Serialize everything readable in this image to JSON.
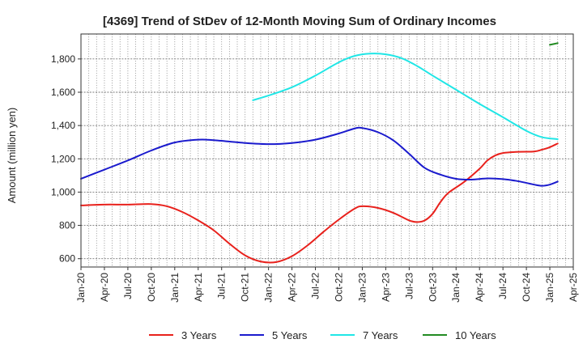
{
  "chart_data": {
    "type": "line",
    "title": "[4369]  Trend of StDev of 12-Month Moving Sum of Ordinary Incomes",
    "xlabel": "",
    "ylabel": "Amount (million yen)",
    "ylim": [
      550,
      1950
    ],
    "y_ticks": [
      600,
      800,
      1000,
      1200,
      1400,
      1600,
      1800
    ],
    "y_tick_labels": [
      "600",
      "800",
      "1,000",
      "1,200",
      "1,400",
      "1,600",
      "1,800"
    ],
    "x_range": [
      "2020-01",
      "2025-04"
    ],
    "x_ticks": [
      "2020-01",
      "2020-04",
      "2020-07",
      "2020-10",
      "2021-01",
      "2021-04",
      "2021-07",
      "2021-10",
      "2022-01",
      "2022-04",
      "2022-07",
      "2022-10",
      "2023-01",
      "2023-04",
      "2023-07",
      "2023-10",
      "2024-01",
      "2024-04",
      "2024-07",
      "2024-10",
      "2025-01",
      "2025-04"
    ],
    "x_tick_labels": [
      "Jan-20",
      "Apr-20",
      "Jul-20",
      "Oct-20",
      "Jan-21",
      "Apr-21",
      "Jul-21",
      "Oct-21",
      "Jan-22",
      "Apr-22",
      "Jul-22",
      "Oct-22",
      "Jan-23",
      "Apr-23",
      "Jul-23",
      "Oct-23",
      "Jan-24",
      "Apr-24",
      "Jul-24",
      "Oct-24",
      "Jan-25",
      "Apr-25"
    ],
    "grid": true,
    "legend_position": "bottom",
    "series": [
      {
        "name": "3 Years",
        "color": "#e8211c",
        "points": [
          [
            "2020-01",
            920
          ],
          [
            "2020-04",
            925
          ],
          [
            "2020-07",
            925
          ],
          [
            "2020-10",
            928
          ],
          [
            "2020-12",
            915
          ],
          [
            "2021-02",
            880
          ],
          [
            "2021-04",
            830
          ],
          [
            "2021-06",
            770
          ],
          [
            "2021-08",
            690
          ],
          [
            "2021-10",
            620
          ],
          [
            "2021-12",
            583
          ],
          [
            "2022-02",
            580
          ],
          [
            "2022-04",
            615
          ],
          [
            "2022-06",
            680
          ],
          [
            "2022-08",
            760
          ],
          [
            "2022-10",
            835
          ],
          [
            "2022-12",
            900
          ],
          [
            "2023-01",
            915
          ],
          [
            "2023-03",
            905
          ],
          [
            "2023-05",
            875
          ],
          [
            "2023-07",
            830
          ],
          [
            "2023-08",
            820
          ],
          [
            "2023-09",
            830
          ],
          [
            "2023-10",
            870
          ],
          [
            "2023-11",
            940
          ],
          [
            "2023-12",
            995
          ],
          [
            "2024-02",
            1060
          ],
          [
            "2024-04",
            1140
          ],
          [
            "2024-05",
            1190
          ],
          [
            "2024-06",
            1220
          ],
          [
            "2024-07",
            1235
          ],
          [
            "2024-09",
            1242
          ],
          [
            "2024-11",
            1244
          ],
          [
            "2024-12",
            1255
          ],
          [
            "2025-01",
            1270
          ],
          [
            "2025-02",
            1292
          ]
        ]
      },
      {
        "name": "5 Years",
        "color": "#1a1acd",
        "points": [
          [
            "2020-01",
            1080
          ],
          [
            "2020-04",
            1135
          ],
          [
            "2020-07",
            1190
          ],
          [
            "2020-10",
            1250
          ],
          [
            "2021-01",
            1298
          ],
          [
            "2021-04",
            1315
          ],
          [
            "2021-06",
            1312
          ],
          [
            "2021-10",
            1295
          ],
          [
            "2022-01",
            1288
          ],
          [
            "2022-04",
            1295
          ],
          [
            "2022-07",
            1315
          ],
          [
            "2022-10",
            1352
          ],
          [
            "2022-12",
            1382
          ],
          [
            "2023-01",
            1385
          ],
          [
            "2023-03",
            1360
          ],
          [
            "2023-05",
            1310
          ],
          [
            "2023-07",
            1230
          ],
          [
            "2023-09",
            1145
          ],
          [
            "2023-11",
            1105
          ],
          [
            "2024-01",
            1080
          ],
          [
            "2024-03",
            1075
          ],
          [
            "2024-05",
            1082
          ],
          [
            "2024-07",
            1078
          ],
          [
            "2024-09",
            1065
          ],
          [
            "2024-11",
            1045
          ],
          [
            "2024-12",
            1038
          ],
          [
            "2025-01",
            1045
          ],
          [
            "2025-02",
            1063
          ]
        ]
      },
      {
        "name": "7 Years",
        "color": "#20e6e6",
        "points": [
          [
            "2021-11",
            1552
          ],
          [
            "2022-01",
            1580
          ],
          [
            "2022-04",
            1630
          ],
          [
            "2022-07",
            1700
          ],
          [
            "2022-10",
            1780
          ],
          [
            "2022-12",
            1818
          ],
          [
            "2023-02",
            1832
          ],
          [
            "2023-04",
            1828
          ],
          [
            "2023-06",
            1805
          ],
          [
            "2023-08",
            1758
          ],
          [
            "2023-10",
            1700
          ],
          [
            "2024-01",
            1615
          ],
          [
            "2024-04",
            1530
          ],
          [
            "2024-07",
            1450
          ],
          [
            "2024-10",
            1368
          ],
          [
            "2024-12",
            1330
          ],
          [
            "2025-02",
            1318
          ]
        ]
      },
      {
        "name": "10 Years",
        "color": "#228b22",
        "points": [
          [
            "2025-01",
            1885
          ],
          [
            "2025-02",
            1895
          ]
        ]
      }
    ]
  }
}
